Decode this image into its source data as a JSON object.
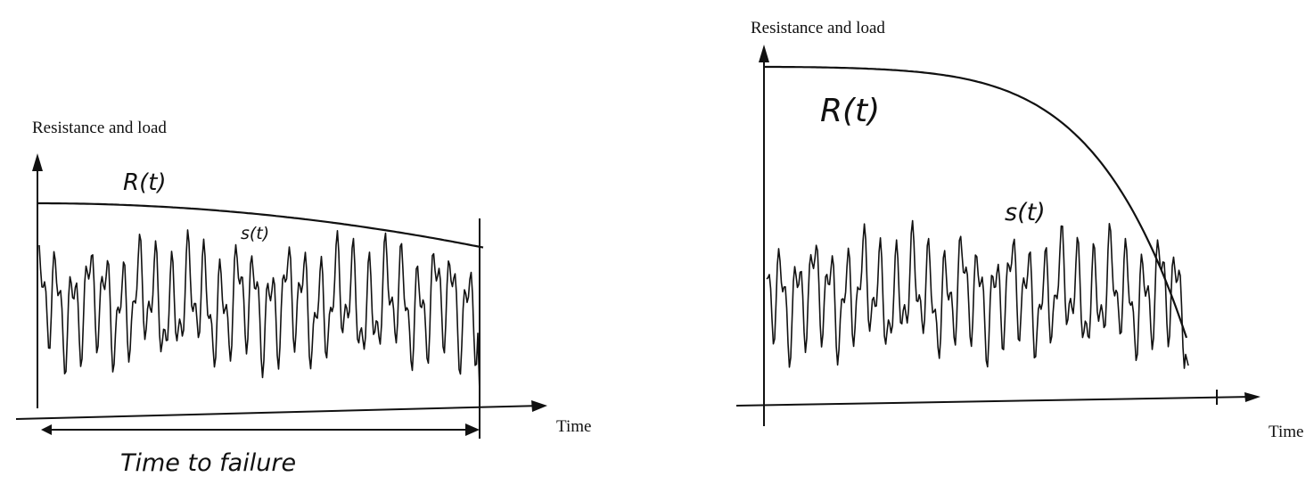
{
  "left_panel": {
    "y_axis_label": "Resistance and load",
    "x_axis_label": "Time",
    "resistance_label": "R(t)",
    "load_label": "s(t)",
    "time_to_failure_label": "Time to failure",
    "resistance_trend": "slow decline",
    "load_pattern": "random oscillation"
  },
  "right_panel": {
    "y_axis_label": "Resistance and load",
    "x_axis_label": "Time",
    "resistance_label": "R(t)",
    "load_label": "s(t)",
    "resistance_trend": "accelerating decline",
    "load_pattern": "random oscillation"
  },
  "colors": {
    "ink": "#111111",
    "background": "#ffffff"
  }
}
